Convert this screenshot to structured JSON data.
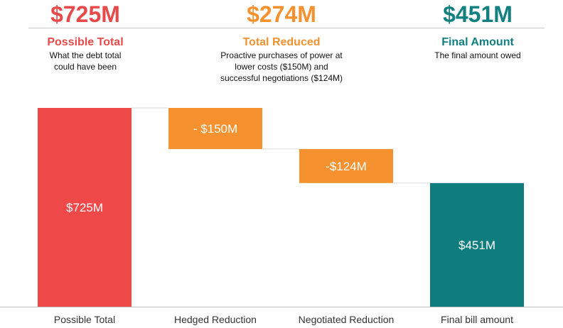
{
  "header": {
    "stats": [
      {
        "value": "$725M",
        "label": "Possible Total",
        "desc": [
          "What the debt total",
          "could have been"
        ],
        "color": "#e84a4a"
      },
      {
        "value": "$274M",
        "label": "Total Reduced",
        "desc": [
          "Proactive purchases of power at",
          "lower costs ($150M) and",
          "successful negotiations ($124M)"
        ],
        "color": "#f5922f"
      },
      {
        "value": "$451M",
        "label": "Final Amount",
        "desc": [
          "The final amount owed"
        ],
        "color": "#138080"
      }
    ]
  },
  "chart_data": {
    "type": "bar",
    "subtype": "waterfall",
    "categories": [
      "Possible Total",
      "Hedged Reduction",
      "Negotiated Reduction",
      "Final bill amount"
    ],
    "values": [
      725,
      -150,
      -124,
      451
    ],
    "bar_labels": [
      "$725M",
      "- $150M",
      "-$124M",
      "$451M"
    ],
    "colors": [
      "#ef4848",
      "#f5922f",
      "#f5922f",
      "#0f7d7d"
    ],
    "unit": "$M",
    "ylim": [
      0,
      725
    ],
    "grid": false,
    "connectors": true
  }
}
